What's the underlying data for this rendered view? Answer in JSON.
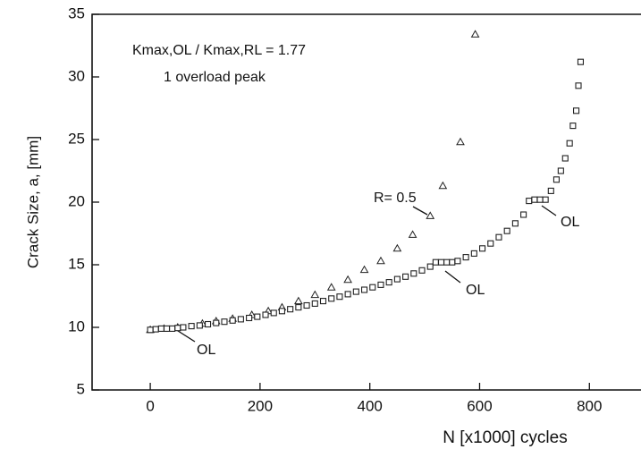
{
  "chart_data": {
    "type": "scatter",
    "y_label": "Crack Size, a, [mm]",
    "x_label": "N [x1000] cycles",
    "annotations": [
      "Kmax,OL / Kmax,RL = 1.77",
      "1 overload peak",
      "R= 0.5",
      "OL",
      "OL",
      "OL"
    ],
    "xlim": [
      -106,
      894
    ],
    "xticks": [
      0,
      200,
      400,
      600,
      800
    ],
    "ylim": [
      5,
      35
    ],
    "yticks": [
      5,
      10,
      15,
      20,
      25,
      30,
      35
    ],
    "series": [
      {
        "marker": "triangle",
        "color": "#222",
        "x": [
          0,
          25,
          50,
          95,
          120,
          150,
          185,
          215,
          240,
          270,
          300,
          330,
          360,
          390,
          420,
          450,
          478,
          510,
          533,
          565,
          592
        ],
        "values": [
          9.8,
          9.9,
          10.0,
          10.3,
          10.5,
          10.7,
          11.0,
          11.3,
          11.6,
          12.1,
          12.6,
          13.2,
          13.8,
          14.6,
          15.3,
          16.3,
          17.4,
          18.9,
          21.3,
          24.8,
          33.4
        ]
      },
      {
        "marker": "square",
        "color": "#222",
        "x": [
          0,
          10,
          20,
          30,
          40,
          50,
          60,
          75,
          90,
          105,
          120,
          135,
          150,
          165,
          180,
          195,
          210,
          225,
          240,
          255,
          270,
          285,
          300,
          315,
          330,
          345,
          360,
          375,
          390,
          405,
          420,
          435,
          450,
          465,
          480,
          495,
          510,
          520,
          530,
          540,
          550,
          560,
          575,
          590,
          605,
          620,
          635,
          650,
          665,
          680,
          690,
          700,
          710,
          720,
          730,
          740,
          748,
          756,
          764,
          770,
          776,
          780,
          784
        ],
        "values": [
          9.8,
          9.85,
          9.9,
          9.9,
          9.9,
          9.95,
          10.0,
          10.1,
          10.15,
          10.25,
          10.35,
          10.45,
          10.55,
          10.65,
          10.75,
          10.85,
          11.0,
          11.15,
          11.3,
          11.45,
          11.6,
          11.75,
          11.9,
          12.1,
          12.3,
          12.45,
          12.65,
          12.85,
          13.0,
          13.2,
          13.4,
          13.6,
          13.85,
          14.05,
          14.3,
          14.55,
          14.85,
          15.2,
          15.2,
          15.2,
          15.2,
          15.3,
          15.6,
          15.9,
          16.3,
          16.7,
          17.2,
          17.7,
          18.3,
          19.0,
          20.1,
          20.2,
          20.2,
          20.2,
          20.9,
          21.8,
          22.5,
          23.5,
          24.7,
          26.1,
          27.3,
          29.3,
          31.2
        ]
      }
    ]
  }
}
